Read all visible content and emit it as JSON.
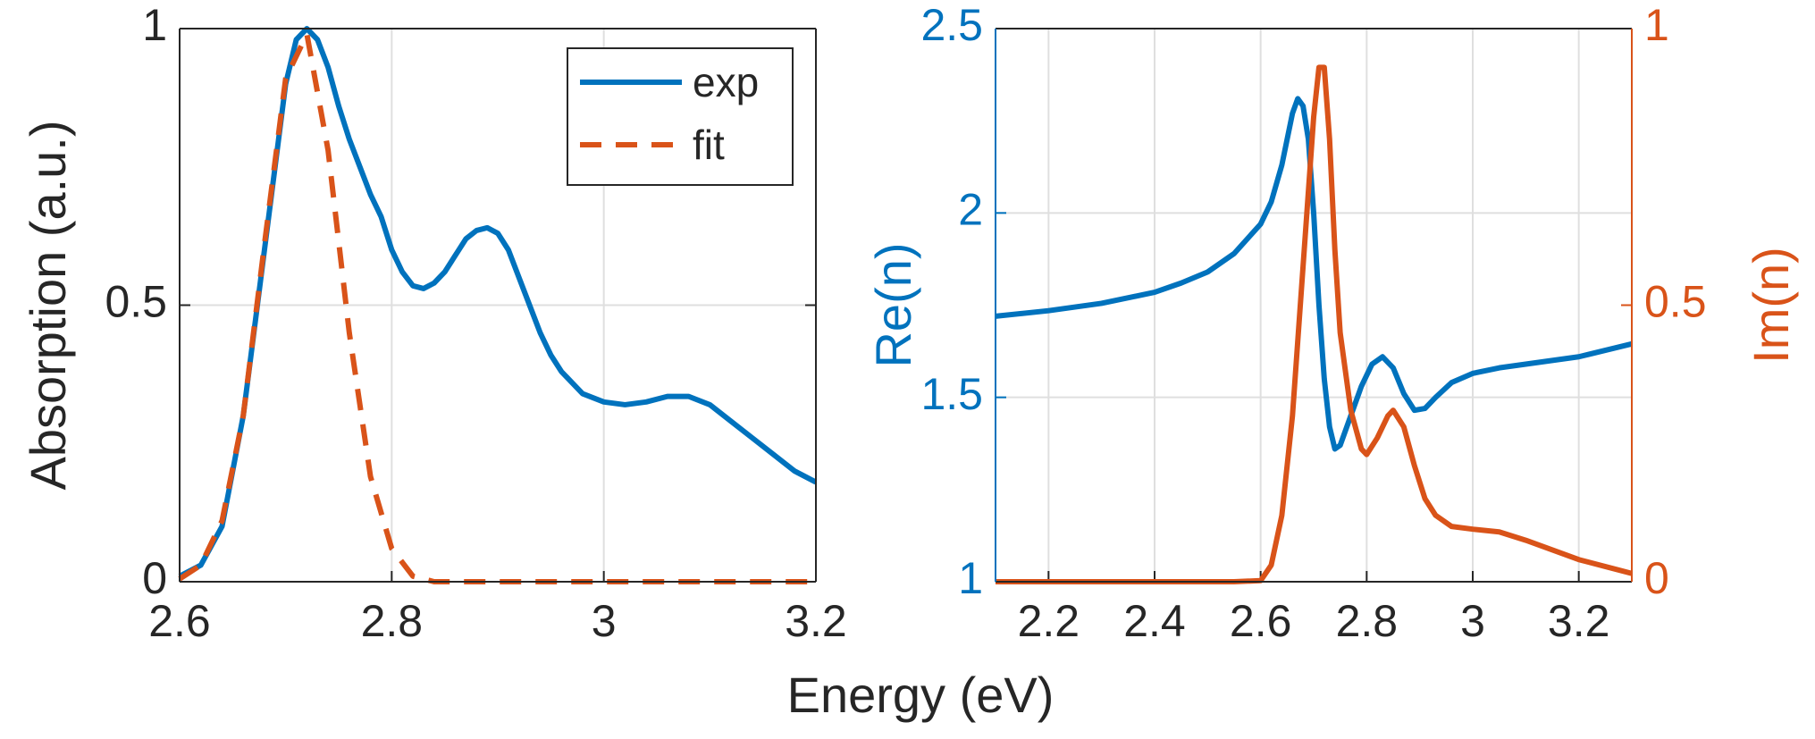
{
  "chart_data": [
    {
      "type": "line",
      "xlabel": "Energy (eV)",
      "ylabel": "Absorption (a.u.)",
      "xlim": [
        2.6,
        3.2
      ],
      "ylim": [
        0,
        1
      ],
      "xticks": [
        2.6,
        2.8,
        3,
        3.2
      ],
      "yticks": [
        0,
        0.5,
        1
      ],
      "grid": true,
      "legend": "northeast",
      "series": [
        {
          "name": "exp",
          "color": "#0072bd",
          "style": "solid",
          "x": [
            2.6,
            2.62,
            2.64,
            2.66,
            2.68,
            2.7,
            2.71,
            2.72,
            2.73,
            2.74,
            2.75,
            2.76,
            2.77,
            2.78,
            2.79,
            2.8,
            2.81,
            2.82,
            2.83,
            2.84,
            2.85,
            2.86,
            2.87,
            2.88,
            2.89,
            2.9,
            2.91,
            2.92,
            2.93,
            2.94,
            2.95,
            2.96,
            2.97,
            2.98,
            3.0,
            3.02,
            3.04,
            3.06,
            3.08,
            3.1,
            3.12,
            3.14,
            3.16,
            3.18,
            3.2
          ],
          "values": [
            0.01,
            0.03,
            0.1,
            0.3,
            0.6,
            0.9,
            0.98,
            1.0,
            0.98,
            0.93,
            0.86,
            0.8,
            0.75,
            0.7,
            0.66,
            0.6,
            0.56,
            0.535,
            0.53,
            0.54,
            0.56,
            0.59,
            0.62,
            0.635,
            0.64,
            0.63,
            0.6,
            0.55,
            0.5,
            0.45,
            0.41,
            0.38,
            0.36,
            0.34,
            0.325,
            0.32,
            0.325,
            0.335,
            0.335,
            0.32,
            0.29,
            0.26,
            0.23,
            0.2,
            0.18
          ]
        },
        {
          "name": "fit",
          "color": "#d95319",
          "style": "dashed",
          "x": [
            2.6,
            2.62,
            2.64,
            2.66,
            2.68,
            2.7,
            2.72,
            2.74,
            2.76,
            2.78,
            2.8,
            2.82,
            2.84,
            2.9,
            3.0,
            3.1,
            3.2
          ],
          "values": [
            0.005,
            0.03,
            0.11,
            0.3,
            0.61,
            0.91,
            0.99,
            0.78,
            0.45,
            0.19,
            0.06,
            0.01,
            0,
            0,
            0,
            0,
            0
          ]
        }
      ]
    },
    {
      "type": "line",
      "ylabel": "Re(n)",
      "y2label": "Im(n)",
      "xlim": [
        2.1,
        3.3
      ],
      "ylim": [
        1,
        2.5
      ],
      "y2lim": [
        0,
        1
      ],
      "xticks": [
        2.2,
        2.4,
        2.6,
        2.8,
        3,
        3.2
      ],
      "yticks": [
        1,
        1.5,
        2,
        2.5
      ],
      "y2ticks": [
        0,
        0.5,
        1
      ],
      "grid": true,
      "ycolor": "#0072bd",
      "y2color": "#d95319",
      "series": [
        {
          "name": "Re(n)",
          "color": "#0072bd",
          "style": "solid",
          "x": [
            2.1,
            2.2,
            2.3,
            2.4,
            2.45,
            2.5,
            2.55,
            2.6,
            2.62,
            2.64,
            2.66,
            2.67,
            2.68,
            2.69,
            2.7,
            2.71,
            2.72,
            2.73,
            2.74,
            2.75,
            2.77,
            2.79,
            2.81,
            2.83,
            2.85,
            2.87,
            2.89,
            2.91,
            2.93,
            2.96,
            3.0,
            3.05,
            3.1,
            3.2,
            3.3
          ],
          "values": [
            1.72,
            1.735,
            1.755,
            1.785,
            1.81,
            1.84,
            1.89,
            1.97,
            2.03,
            2.13,
            2.27,
            2.31,
            2.29,
            2.2,
            2.0,
            1.75,
            1.55,
            1.42,
            1.36,
            1.37,
            1.45,
            1.53,
            1.59,
            1.61,
            1.58,
            1.51,
            1.465,
            1.47,
            1.5,
            1.54,
            1.565,
            1.58,
            1.59,
            1.61,
            1.645
          ]
        },
        {
          "name": "Im(n)",
          "color": "#d95319",
          "style": "solid",
          "axis": "y2",
          "x": [
            2.1,
            2.55,
            2.6,
            2.62,
            2.64,
            2.66,
            2.68,
            2.7,
            2.71,
            2.72,
            2.73,
            2.74,
            2.75,
            2.77,
            2.79,
            2.8,
            2.82,
            2.84,
            2.85,
            2.87,
            2.89,
            2.91,
            2.93,
            2.96,
            3.0,
            3.05,
            3.1,
            3.2,
            3.3
          ],
          "values": [
            0,
            0,
            0.002,
            0.03,
            0.12,
            0.3,
            0.57,
            0.84,
            0.93,
            0.93,
            0.8,
            0.6,
            0.45,
            0.31,
            0.24,
            0.23,
            0.26,
            0.3,
            0.31,
            0.28,
            0.21,
            0.15,
            0.12,
            0.1,
            0.095,
            0.09,
            0.075,
            0.04,
            0.015
          ]
        }
      ]
    }
  ]
}
